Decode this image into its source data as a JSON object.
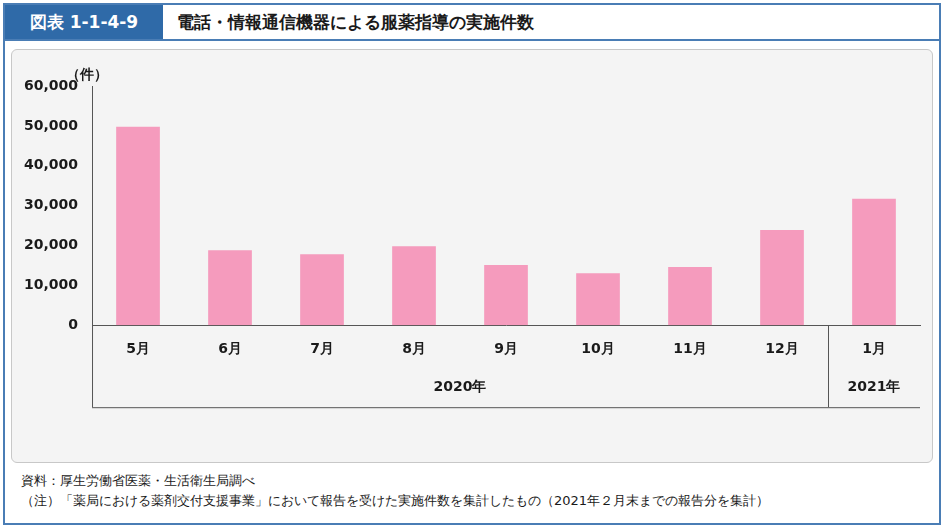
{
  "chart_data": {
    "type": "bar",
    "figure_number": "図表 1-1-4-9",
    "title": "電話・情報通信機器による服薬指導の実施件数",
    "ylabel": "（件）",
    "categories": [
      "5月",
      "6月",
      "7月",
      "8月",
      "9月",
      "10月",
      "11月",
      "12月",
      "1月"
    ],
    "values": [
      49800,
      18800,
      17800,
      19800,
      15100,
      13000,
      14600,
      23900,
      31700
    ],
    "x_groups": [
      {
        "label": "2020年",
        "count": 8
      },
      {
        "label": "2021年",
        "count": 1
      }
    ],
    "color": "#f59bbd",
    "ylim": [
      0,
      60000
    ],
    "yticks": [
      0,
      {
        "value": 10000,
        "label": "10,000"
      },
      {
        "value": 20000,
        "label": "20,000"
      },
      {
        "value": 30000,
        "label": "30,000"
      },
      {
        "value": 40000,
        "label": "40,000"
      },
      {
        "value": 50000,
        "label": "50,000"
      },
      {
        "value": 60000,
        "label": "60,000"
      }
    ],
    "grid": false,
    "source": "資料：厚生労働省医薬・生活衛生局調べ",
    "note": "（注）「薬局における薬剤交付支援事業」において報告を受けた実施件数を集計したもの（2021年２月末までの報告分を集計）"
  }
}
